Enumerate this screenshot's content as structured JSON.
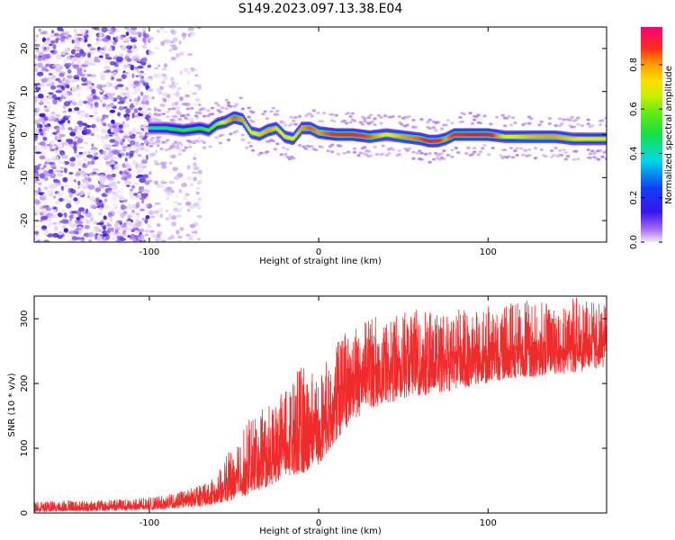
{
  "title": "S149.2023.097.13.38.E04",
  "colors": {
    "snr_line": "#ee2c2c",
    "axis": "#000000",
    "scatter_low": "#e9d7f7",
    "scatter_high": "#7a14f0"
  },
  "chart_data": [
    {
      "type": "heatmap",
      "title": "S149.2023.097.13.38.E04",
      "xlabel": "Height of straight line (km)",
      "ylabel": "Frequency (Hz)",
      "xlim": [
        -168,
        170
      ],
      "ylim": [
        -25,
        25
      ],
      "xticks": [
        -100,
        0,
        100
      ],
      "yticks": [
        -20,
        -10,
        0,
        10,
        20
      ],
      "colorbar": {
        "label": "Normalized spectral amplitude",
        "range": [
          0,
          0.97
        ],
        "ticks": [
          0.0,
          0.2,
          0.4,
          0.6,
          0.8
        ],
        "colormap": "rainbow (white/violet → blue → cyan → green → yellow → orange → red → magenta)"
      },
      "noise_region": {
        "x_range": [
          -168,
          -100
        ],
        "description": "scattered low-amplitude noise spots over all frequencies"
      },
      "ridge": {
        "x": [
          -100,
          -90,
          -80,
          -70,
          -65,
          -60,
          -55,
          -50,
          -45,
          -40,
          -35,
          -30,
          -25,
          -20,
          -15,
          -10,
          -5,
          0,
          10,
          20,
          30,
          40,
          50,
          60,
          65,
          70,
          75,
          80,
          90,
          100,
          110,
          120,
          130,
          140,
          150,
          160,
          170
        ],
        "frequency": [
          1.5,
          1.5,
          1.0,
          1.5,
          1.0,
          2.5,
          3.0,
          4.0,
          3.5,
          0.5,
          0.0,
          1.0,
          1.5,
          -0.5,
          -1.0,
          1.5,
          1.5,
          0.5,
          0.0,
          0.0,
          -0.5,
          0.0,
          -0.5,
          -1.0,
          -1.5,
          -1.5,
          -1.0,
          0.0,
          0.0,
          0.0,
          -0.5,
          -0.5,
          -0.5,
          -0.5,
          -1.0,
          -1.0,
          -1.0
        ],
        "amplitude": [
          0.4,
          0.45,
          0.5,
          0.5,
          0.55,
          0.6,
          0.75,
          0.85,
          0.8,
          0.7,
          0.75,
          0.8,
          0.75,
          0.7,
          0.7,
          0.8,
          0.85,
          0.8,
          0.9,
          0.9,
          0.85,
          0.7,
          0.8,
          0.85,
          0.9,
          0.9,
          0.8,
          0.9,
          0.95,
          0.95,
          0.7,
          0.75,
          0.8,
          0.8,
          0.75,
          0.7,
          0.7
        ]
      }
    },
    {
      "type": "line",
      "xlabel": "Height of straight line (km)",
      "ylabel": "SNR (10 * v/v)",
      "xlim": [
        -168,
        170
      ],
      "ylim": [
        0,
        335
      ],
      "xticks": [
        -100,
        0,
        100
      ],
      "yticks": [
        0,
        100,
        200,
        300
      ],
      "series": [
        {
          "x": [
            -168,
            -150,
            -130,
            -110,
            -100,
            -90,
            -80,
            -70,
            -60,
            -50,
            -40,
            -30,
            -20,
            -10,
            0,
            10,
            20,
            30,
            40,
            50,
            60,
            70,
            80,
            90,
            100,
            110,
            120,
            130,
            140,
            150,
            160,
            170
          ],
          "y_mid": [
            8,
            8,
            9,
            10,
            11,
            14,
            18,
            22,
            30,
            45,
            60,
            80,
            105,
            120,
            125,
            185,
            205,
            220,
            225,
            230,
            232,
            235,
            238,
            240,
            242,
            248,
            252,
            255,
            258,
            260,
            262,
            265
          ],
          "y_min": [
            2,
            2,
            3,
            4,
            5,
            6,
            8,
            10,
            14,
            20,
            30,
            40,
            55,
            60,
            75,
            110,
            140,
            160,
            170,
            175,
            180,
            185,
            190,
            195,
            200,
            205,
            210,
            210,
            215,
            215,
            220,
            225
          ],
          "y_max": [
            18,
            20,
            20,
            22,
            25,
            28,
            35,
            45,
            60,
            110,
            150,
            165,
            190,
            230,
            210,
            270,
            290,
            305,
            300,
            310,
            315,
            310,
            320,
            315,
            320,
            325,
            330,
            325,
            330,
            335,
            330,
            320
          ]
        }
      ]
    }
  ]
}
